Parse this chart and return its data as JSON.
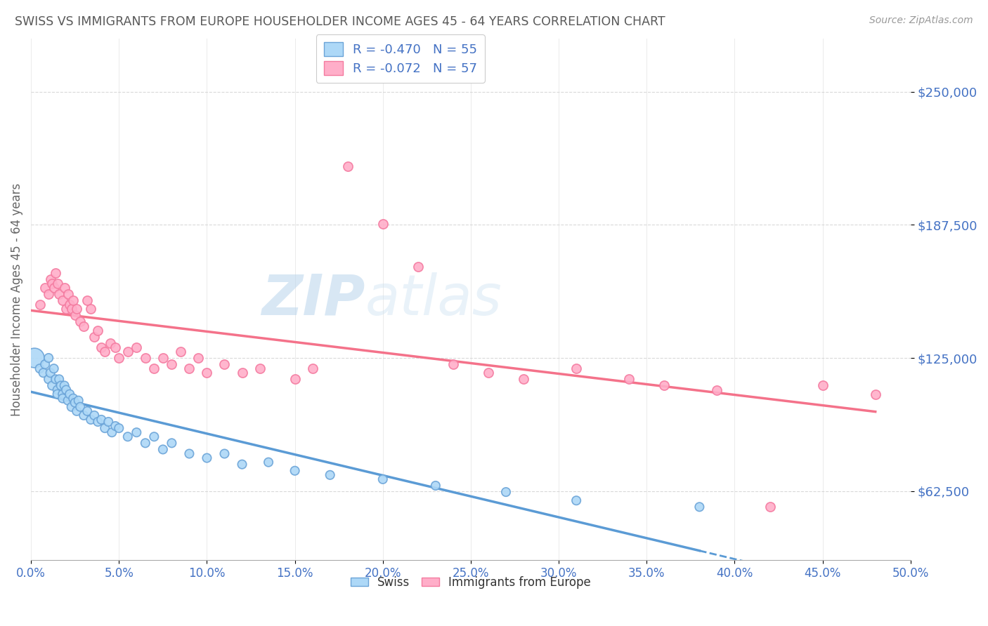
{
  "title": "SWISS VS IMMIGRANTS FROM EUROPE HOUSEHOLDER INCOME AGES 45 - 64 YEARS CORRELATION CHART",
  "source": "Source: ZipAtlas.com",
  "ylabel": "Householder Income Ages 45 - 64 years",
  "yticks": [
    62500,
    125000,
    187500,
    250000
  ],
  "xmin": 0.0,
  "xmax": 0.5,
  "ymin": 30000,
  "ymax": 275000,
  "swiss_R": "-0.470",
  "swiss_N": "55",
  "immig_R": "-0.072",
  "immig_N": "57",
  "swiss_color": "#ADD8F7",
  "immig_color": "#FFAEC9",
  "swiss_edge_color": "#6BA4D8",
  "immig_edge_color": "#F47BA0",
  "swiss_line_color": "#5B9BD5",
  "immig_line_color": "#F4728A",
  "title_color": "#595959",
  "axis_label_color": "#4472C4",
  "legend_text_color": "#4472C4",
  "watermark_color": "#D8E8F5",
  "grid_color": "#D0D0D0",
  "swiss_x": [
    0.002,
    0.005,
    0.007,
    0.008,
    0.01,
    0.01,
    0.011,
    0.012,
    0.013,
    0.014,
    0.015,
    0.015,
    0.016,
    0.017,
    0.018,
    0.018,
    0.019,
    0.02,
    0.021,
    0.022,
    0.023,
    0.024,
    0.025,
    0.026,
    0.027,
    0.028,
    0.03,
    0.032,
    0.034,
    0.036,
    0.038,
    0.04,
    0.042,
    0.044,
    0.046,
    0.048,
    0.05,
    0.055,
    0.06,
    0.065,
    0.07,
    0.075,
    0.08,
    0.09,
    0.1,
    0.11,
    0.12,
    0.135,
    0.15,
    0.17,
    0.2,
    0.23,
    0.27,
    0.31,
    0.38
  ],
  "swiss_y": [
    125000,
    120000,
    118000,
    122000,
    115000,
    125000,
    118000,
    112000,
    120000,
    115000,
    110000,
    108000,
    115000,
    112000,
    108000,
    106000,
    112000,
    110000,
    105000,
    108000,
    102000,
    106000,
    104000,
    100000,
    105000,
    102000,
    98000,
    100000,
    96000,
    98000,
    95000,
    96000,
    92000,
    95000,
    90000,
    93000,
    92000,
    88000,
    90000,
    85000,
    88000,
    82000,
    85000,
    80000,
    78000,
    80000,
    75000,
    76000,
    72000,
    70000,
    68000,
    65000,
    62000,
    58000,
    55000
  ],
  "swiss_size": [
    400,
    80,
    80,
    80,
    80,
    80,
    80,
    80,
    80,
    80,
    80,
    80,
    80,
    80,
    80,
    80,
    80,
    80,
    80,
    80,
    80,
    80,
    80,
    80,
    80,
    80,
    80,
    80,
    80,
    80,
    80,
    80,
    80,
    80,
    80,
    80,
    80,
    80,
    80,
    80,
    80,
    80,
    80,
    80,
    80,
    80,
    80,
    80,
    80,
    80,
    80,
    80,
    80,
    80,
    80
  ],
  "immig_x": [
    0.005,
    0.008,
    0.01,
    0.011,
    0.012,
    0.013,
    0.014,
    0.015,
    0.016,
    0.018,
    0.019,
    0.02,
    0.021,
    0.022,
    0.023,
    0.024,
    0.025,
    0.026,
    0.028,
    0.03,
    0.032,
    0.034,
    0.036,
    0.038,
    0.04,
    0.042,
    0.045,
    0.048,
    0.05,
    0.055,
    0.06,
    0.065,
    0.07,
    0.075,
    0.08,
    0.085,
    0.09,
    0.095,
    0.1,
    0.11,
    0.12,
    0.13,
    0.15,
    0.16,
    0.18,
    0.2,
    0.22,
    0.24,
    0.26,
    0.28,
    0.31,
    0.34,
    0.36,
    0.39,
    0.42,
    0.45,
    0.48
  ],
  "immig_y": [
    150000,
    158000,
    155000,
    162000,
    160000,
    158000,
    165000,
    160000,
    155000,
    152000,
    158000,
    148000,
    155000,
    150000,
    148000,
    152000,
    145000,
    148000,
    142000,
    140000,
    152000,
    148000,
    135000,
    138000,
    130000,
    128000,
    132000,
    130000,
    125000,
    128000,
    130000,
    125000,
    120000,
    125000,
    122000,
    128000,
    120000,
    125000,
    118000,
    122000,
    118000,
    120000,
    115000,
    120000,
    215000,
    188000,
    168000,
    122000,
    118000,
    115000,
    120000,
    115000,
    112000,
    110000,
    55000,
    112000,
    108000
  ]
}
